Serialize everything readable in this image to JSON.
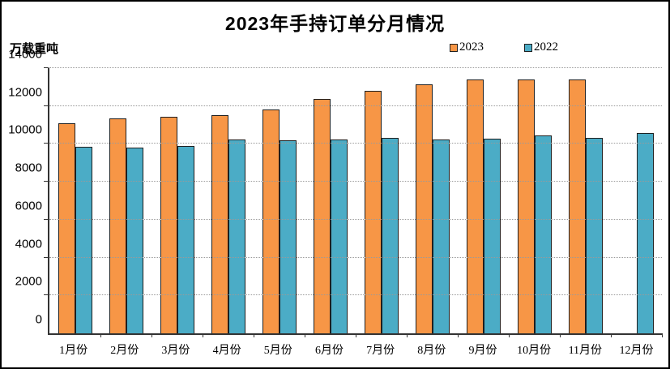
{
  "title": "2023年手持订单分月情况",
  "y_unit_label": "万载重吨",
  "legend": {
    "items": [
      "2023",
      "2022"
    ]
  },
  "chart_data": {
    "type": "bar",
    "title": "2023年手持订单分月情况",
    "xlabel": "",
    "ylabel": "万载重吨",
    "categories": [
      "1月份",
      "2月份",
      "3月份",
      "4月份",
      "5月份",
      "6月份",
      "7月份",
      "8月份",
      "9月份",
      "10月份",
      "11月份",
      "12月份"
    ],
    "series": [
      {
        "name": "2023",
        "color": "#F79646",
        "values": [
          11107,
          11358,
          11452,
          11515,
          11799,
          12377,
          12790,
          13155,
          13393,
          13382,
          13409,
          null
        ]
      },
      {
        "name": "2022",
        "color": "#4BACC6",
        "values": [
          9859,
          9798,
          9889,
          10247,
          10171,
          10254,
          10332,
          10219,
          10266,
          10441,
          10339,
          10557
        ]
      }
    ],
    "ylim": [
      0,
      14000
    ],
    "ytick_step": 2000,
    "yticks": [
      0,
      2000,
      4000,
      6000,
      8000,
      10000,
      12000,
      14000
    ],
    "grid": "horizontal-dotted",
    "gridline_color": "#9a9a9a",
    "axis_color": "#333333",
    "bar_border_color": "#1f1f1f",
    "legend_position": "top-right"
  }
}
